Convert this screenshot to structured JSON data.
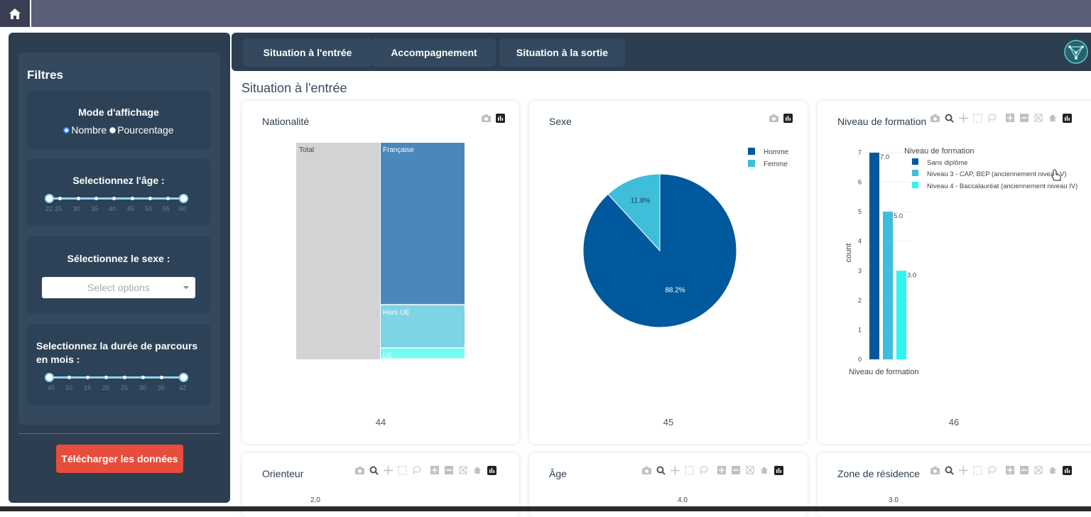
{
  "filters": {
    "title": "Filtres",
    "display_mode": {
      "title": "Mode d'affichage",
      "options": [
        "Nombre",
        "Pourcentage"
      ],
      "selected": "Nombre"
    },
    "age": {
      "title": "Selectionnez l'âge :",
      "min": 22,
      "max": 60,
      "ticks": [
        "22",
        "25",
        "30",
        "35",
        "40",
        "45",
        "50",
        "55",
        "60"
      ]
    },
    "sex": {
      "title": "Sélectionnez le sexe :",
      "placeholder": "Select options"
    },
    "duration": {
      "title": "Selectionnez la durée de parcours en mois :",
      "min": 4,
      "max": 42,
      "ticks": [
        "45",
        "10",
        "15",
        "20",
        "25",
        "30",
        "35",
        "42"
      ]
    },
    "download_label": "Télécharger les données"
  },
  "tabs": [
    {
      "label": "Situation à l'entrée"
    },
    {
      "label": "Accompagnement"
    },
    {
      "label": "Situation à la sortie"
    }
  ],
  "section_title": "Situation à l'entrée",
  "cards": {
    "nationality": {
      "title": "Nationalité",
      "footer": "44"
    },
    "sex": {
      "title": "Sexe",
      "footer": "45"
    },
    "education": {
      "title": "Niveau de formation",
      "footer": "46"
    },
    "orienteur": {
      "title": "Orienteur",
      "peek": "2.0"
    },
    "age": {
      "title": "Âge",
      "peek": "4.0"
    },
    "residence": {
      "title": "Zone de résidence",
      "peek": "3.0"
    }
  },
  "colors": {
    "dark_blue": "#00599c",
    "mid_blue": "#3ebedb",
    "cyan": "#2ef5f0",
    "treemap_blue": "#4a88bb",
    "treemap_light": "#7dd4e4",
    "treemap_cyan": "#74fbf2",
    "total_grey": "#d3d3d3"
  },
  "chart_data": [
    {
      "type": "treemap",
      "title": "Nationalité",
      "root": "Total",
      "labels": [
        "Française",
        "Hors UE",
        "UE"
      ],
      "values": [
        30,
        8,
        2
      ]
    },
    {
      "type": "pie",
      "title": "Sexe",
      "labels": [
        "Homme",
        "Femme"
      ],
      "values": [
        88.2,
        11.8
      ],
      "value_labels": [
        "88.2%",
        "11.8%"
      ],
      "legend": "top-right"
    },
    {
      "type": "bar",
      "title": "Niveau de formation",
      "xlabel": "Niveau de formation",
      "ylabel": "count",
      "legend_title": "Niveau de formation",
      "ylim": [
        0,
        7
      ],
      "y_ticks": [
        "0",
        "1",
        "2",
        "3",
        "4",
        "5",
        "6",
        "7"
      ],
      "series": [
        {
          "name": "Sans diplôme",
          "values": [
            7.0
          ],
          "label": "7.0"
        },
        {
          "name": "Niveau 3 - CAP, BEP (anciennement niveau V)",
          "values": [
            5.0
          ],
          "label": "5.0"
        },
        {
          "name": "Niveau 4 - Baccalauréat (anciennement niveau IV)",
          "values": [
            3.0
          ],
          "label": "3.0"
        }
      ]
    }
  ]
}
